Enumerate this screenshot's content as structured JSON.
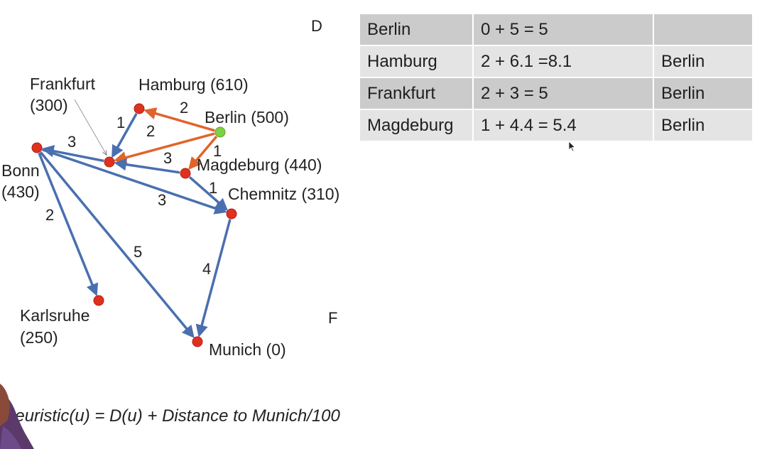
{
  "graph": {
    "nodes": [
      {
        "id": "berlin",
        "label": "Berlin (500)",
        "color": "#7ed043"
      },
      {
        "id": "hamburg",
        "label": "Hamburg (610)",
        "color": "#e03020"
      },
      {
        "id": "frankfurt",
        "label": "Frankfurt",
        "label2": "(300)",
        "color": "#e03020"
      },
      {
        "id": "bonn",
        "label": "Bonn",
        "label2": "(430)",
        "color": "#e03020"
      },
      {
        "id": "magdeburg",
        "label": "Magdeburg (440)",
        "color": "#e03020"
      },
      {
        "id": "chemnitz",
        "label": "Chemnitz (310)",
        "color": "#e03020"
      },
      {
        "id": "karlsruhe",
        "label": "Karlsruhe",
        "label2": "(250)",
        "color": "#e03020"
      },
      {
        "id": "munich",
        "label": "Munich (0)",
        "color": "#e03020"
      }
    ],
    "edges": [
      {
        "from": "berlin",
        "to": "hamburg",
        "weight": "2",
        "color": "#e0642c"
      },
      {
        "from": "berlin",
        "to": "frankfurt",
        "weight": "2",
        "color": "#e0642c"
      },
      {
        "from": "berlin",
        "to": "magdeburg",
        "weight": "1",
        "color": "#e0642c"
      },
      {
        "from": "hamburg",
        "to": "frankfurt",
        "weight": "1",
        "color": "#4a6fb0"
      },
      {
        "from": "magdeburg",
        "to": "frankfurt",
        "weight": "3",
        "color": "#4a6fb0"
      },
      {
        "from": "frankfurt",
        "to": "bonn",
        "weight": "3",
        "color": "#4a6fb0"
      },
      {
        "from": "magdeburg",
        "to": "chemnitz",
        "weight": "1",
        "color": "#4a6fb0"
      },
      {
        "from": "bonn",
        "to": "chemnitz",
        "weight": "3",
        "color": "#4a6fb0"
      },
      {
        "from": "bonn",
        "to": "karlsruhe",
        "weight": "2",
        "color": "#4a6fb0"
      },
      {
        "from": "bonn",
        "to": "munich",
        "weight": "5",
        "color": "#4a6fb0"
      },
      {
        "from": "chemnitz",
        "to": "munich",
        "weight": "4",
        "color": "#4a6fb0"
      }
    ]
  },
  "letters": {
    "d": "D",
    "f": "F"
  },
  "table": {
    "rows": [
      [
        "Berlin",
        "0 + 5 = 5",
        ""
      ],
      [
        "Hamburg",
        "2 + 6.1 =8.1",
        "Berlin"
      ],
      [
        "Frankfurt",
        "2 + 3 = 5",
        "Berlin"
      ],
      [
        "Magdeburg",
        "1 + 4.4 = 5.4",
        "Berlin"
      ]
    ]
  },
  "formula": "heuristic(u) = D(u) + Distance to Munich/100"
}
